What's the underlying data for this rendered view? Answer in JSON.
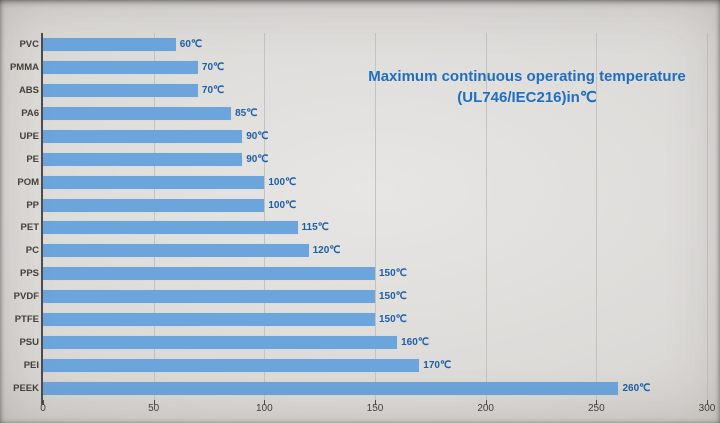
{
  "title": {
    "line1": "Maximum continuous operating temperature",
    "line2": "(UL746/IEC216)in℃"
  },
  "chart_data": {
    "type": "bar",
    "orientation": "horizontal",
    "title": "Maximum continuous operating temperature (UL746/IEC216)in℃",
    "categories": [
      "PVC",
      "PMMA",
      "ABS",
      "PA6",
      "UPE",
      "PE",
      "POM",
      "PP",
      "PET",
      "PC",
      "PPS",
      "PVDF",
      "PTFE",
      "PSU",
      "PEI",
      "PEEK"
    ],
    "values": [
      60,
      70,
      70,
      85,
      90,
      90,
      100,
      100,
      115,
      120,
      150,
      150,
      150,
      160,
      170,
      260
    ],
    "value_labels": [
      "60℃",
      "70℃",
      "70℃",
      "85℃",
      "90℃",
      "90℃",
      "100℃",
      "100℃",
      "115℃",
      "120℃",
      "150℃",
      "150℃",
      "150℃",
      "160℃",
      "170℃",
      "260℃"
    ],
    "xlabel": "",
    "ylabel": "",
    "xlim": [
      0,
      300
    ],
    "xticks": [
      0,
      50,
      100,
      150,
      200,
      250,
      300
    ],
    "grid": true,
    "legend": false,
    "colors": {
      "bar": "#6CA5DC",
      "title": "#1E6FC0",
      "value_label": "#1D5FA8",
      "axis_text": "#45403A",
      "gridline": "#C5C3C0",
      "axis_line": "#4D4D4D"
    }
  }
}
